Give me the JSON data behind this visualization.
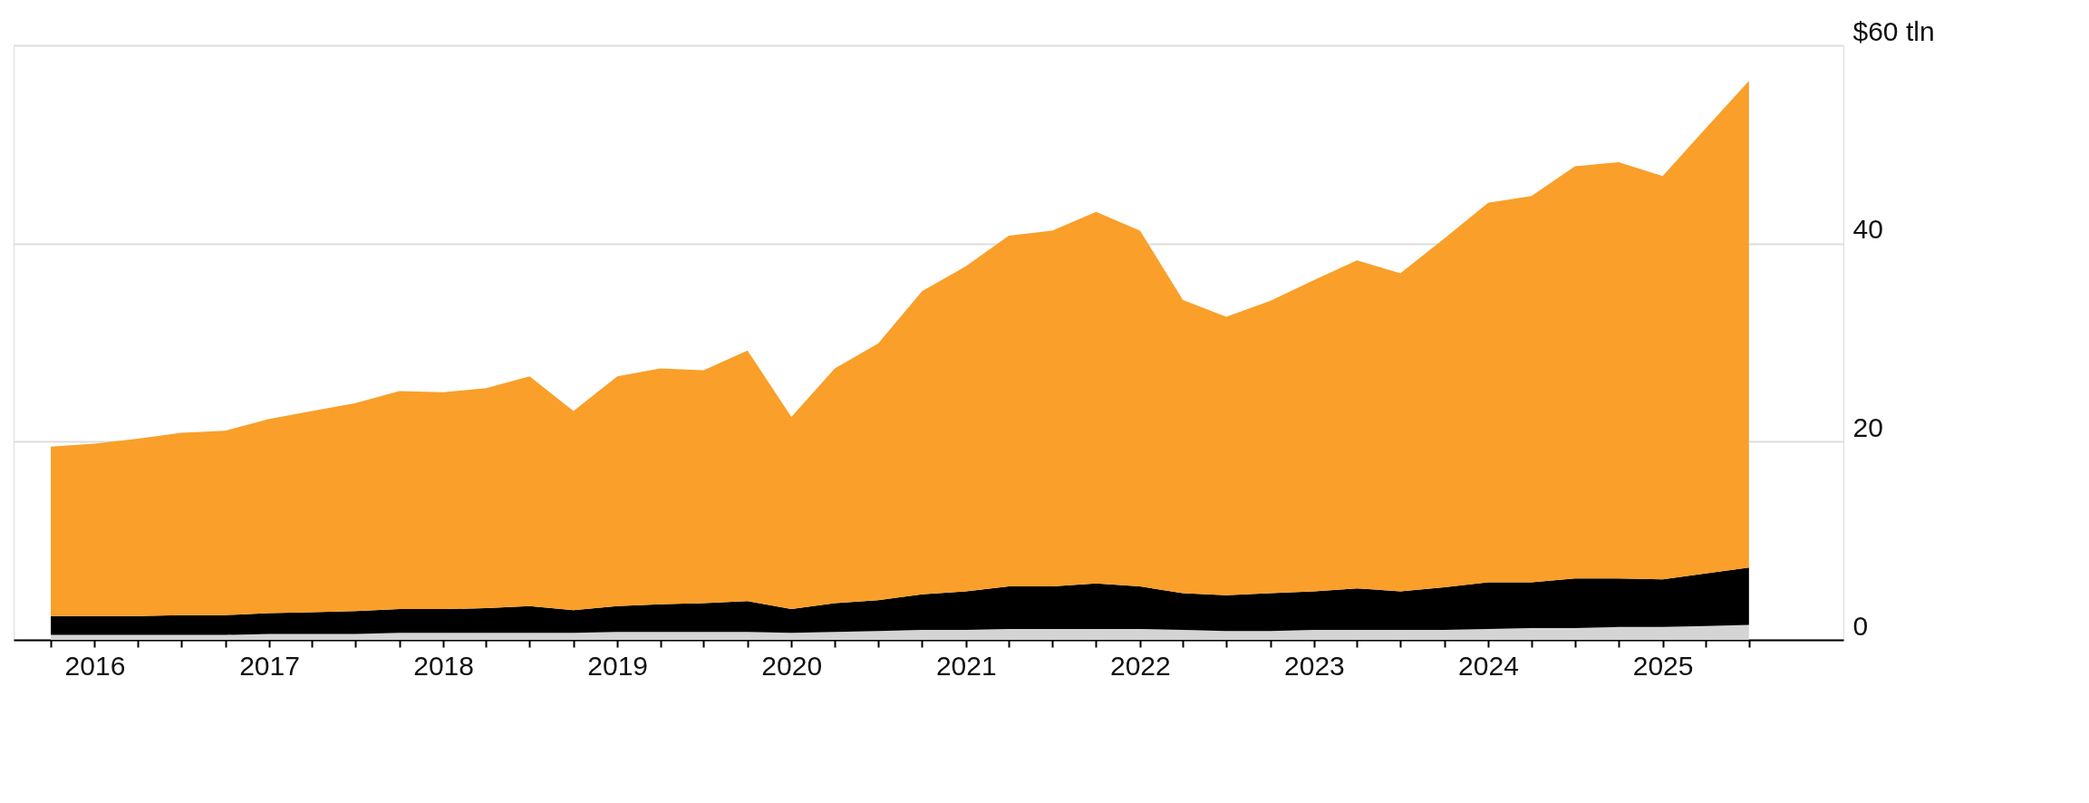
{
  "chart_data": {
    "type": "area",
    "stacked": true,
    "grid": "y",
    "legend": false,
    "x": [
      "2015-10",
      "2016-01",
      "2016-04",
      "2016-07",
      "2016-10",
      "2017-01",
      "2017-04",
      "2017-07",
      "2017-10",
      "2018-01",
      "2018-04",
      "2018-07",
      "2018-10",
      "2019-01",
      "2019-04",
      "2019-07",
      "2019-10",
      "2020-01",
      "2020-04",
      "2020-07",
      "2020-10",
      "2021-01",
      "2021-04",
      "2021-07",
      "2021-10",
      "2022-01",
      "2022-04",
      "2022-07",
      "2022-10",
      "2023-01",
      "2023-04",
      "2023-07",
      "2023-10",
      "2024-01",
      "2024-04",
      "2024-07",
      "2024-10",
      "2025-01",
      "2025-04",
      "2025-07"
    ],
    "xlim": [
      "2015-07-15",
      "2026-01-15"
    ],
    "xticks": [
      {
        "value": "2015-10",
        "label": null
      },
      {
        "value": "2016-01",
        "label": "2016"
      },
      {
        "value": "2016-04",
        "label": null
      },
      {
        "value": "2016-07",
        "label": null
      },
      {
        "value": "2016-10",
        "label": null
      },
      {
        "value": "2017-01",
        "label": "2017"
      },
      {
        "value": "2017-04",
        "label": null
      },
      {
        "value": "2017-07",
        "label": null
      },
      {
        "value": "2017-10",
        "label": null
      },
      {
        "value": "2018-01",
        "label": "2018"
      },
      {
        "value": "2018-04",
        "label": null
      },
      {
        "value": "2018-07",
        "label": null
      },
      {
        "value": "2018-10",
        "label": null
      },
      {
        "value": "2019-01",
        "label": "2019"
      },
      {
        "value": "2019-04",
        "label": null
      },
      {
        "value": "2019-07",
        "label": null
      },
      {
        "value": "2019-10",
        "label": null
      },
      {
        "value": "2020-01",
        "label": "2020"
      },
      {
        "value": "2020-04",
        "label": null
      },
      {
        "value": "2020-07",
        "label": null
      },
      {
        "value": "2020-10",
        "label": null
      },
      {
        "value": "2021-01",
        "label": "2021"
      },
      {
        "value": "2021-04",
        "label": null
      },
      {
        "value": "2021-07",
        "label": null
      },
      {
        "value": "2021-10",
        "label": null
      },
      {
        "value": "2022-01",
        "label": "2022"
      },
      {
        "value": "2022-04",
        "label": null
      },
      {
        "value": "2022-07",
        "label": null
      },
      {
        "value": "2022-10",
        "label": null
      },
      {
        "value": "2023-01",
        "label": "2023"
      },
      {
        "value": "2023-04",
        "label": null
      },
      {
        "value": "2023-07",
        "label": null
      },
      {
        "value": "2023-10",
        "label": null
      },
      {
        "value": "2024-01",
        "label": "2024"
      },
      {
        "value": "2024-04",
        "label": null
      },
      {
        "value": "2024-07",
        "label": null
      },
      {
        "value": "2024-10",
        "label": null
      },
      {
        "value": "2025-01",
        "label": "2025"
      },
      {
        "value": "2025-04",
        "label": null
      },
      {
        "value": "2025-07",
        "label": null
      }
    ],
    "ylim": [
      0,
      60
    ],
    "yticks": [
      0,
      20,
      40,
      {
        "value": 60,
        "label": "$60 tln"
      }
    ],
    "series": [
      {
        "color": "#d4d4d4",
        "values": [
          0.5,
          0.5,
          0.5,
          0.5,
          0.5,
          0.6,
          0.6,
          0.6,
          0.7,
          0.7,
          0.7,
          0.7,
          0.7,
          0.8,
          0.8,
          0.8,
          0.8,
          0.7,
          0.8,
          0.9,
          1.0,
          1.0,
          1.1,
          1.1,
          1.1,
          1.1,
          1.0,
          0.9,
          0.9,
          1.0,
          1.0,
          1.0,
          1.0,
          1.1,
          1.2,
          1.2,
          1.3,
          1.3,
          1.4,
          1.5
        ]
      },
      {
        "color": "#000000",
        "values": [
          1.9,
          1.9,
          1.9,
          2.0,
          2.0,
          2.1,
          2.2,
          2.3,
          2.4,
          2.4,
          2.5,
          2.7,
          2.3,
          2.6,
          2.8,
          2.9,
          3.1,
          2.4,
          2.9,
          3.1,
          3.6,
          3.9,
          4.3,
          4.3,
          4.6,
          4.3,
          3.7,
          3.6,
          3.8,
          3.9,
          4.2,
          3.9,
          4.3,
          4.7,
          4.6,
          5.0,
          4.9,
          4.8,
          5.3,
          5.8
        ]
      },
      {
        "color": "#f99f2a",
        "values": [
          17.1,
          17.4,
          17.9,
          18.4,
          18.6,
          19.6,
          20.3,
          21.0,
          22.0,
          21.9,
          22.2,
          23.2,
          20.1,
          23.2,
          23.8,
          23.5,
          25.3,
          19.4,
          23.7,
          25.9,
          30.6,
          32.8,
          35.4,
          35.9,
          37.5,
          35.9,
          29.6,
          28.1,
          29.5,
          31.4,
          33.1,
          32.1,
          35.2,
          38.3,
          39.0,
          41.6,
          42.0,
          40.7,
          44.9,
          49.1
        ]
      }
    ]
  }
}
